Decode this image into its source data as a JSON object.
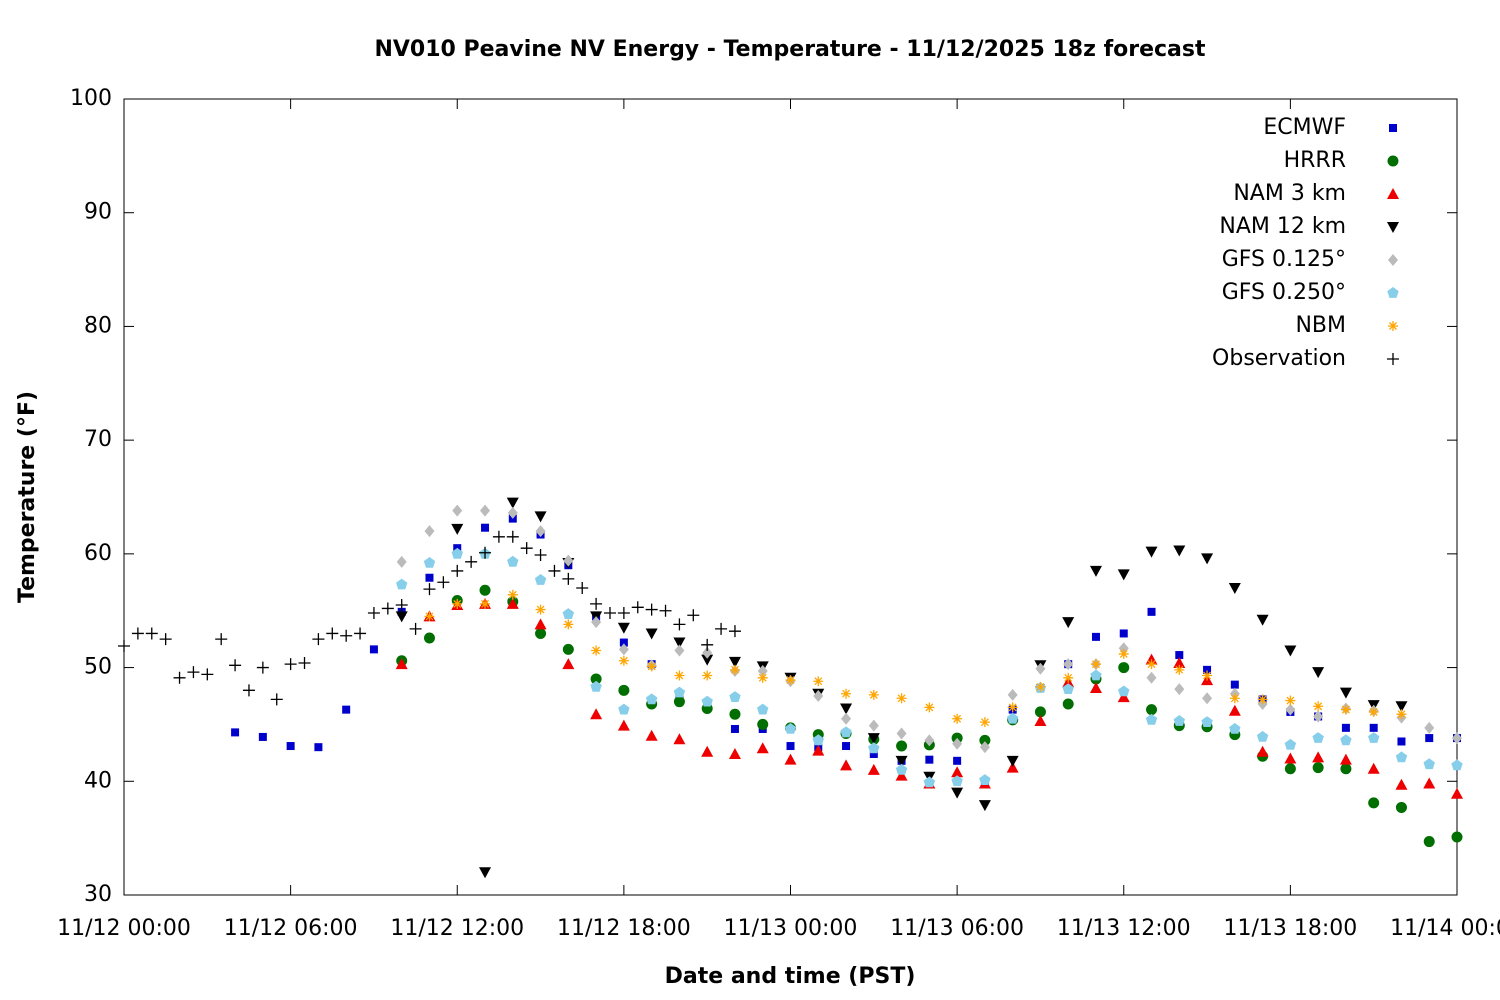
{
  "chart_data": {
    "type": "scatter",
    "title": "NV010 Peavine NV Energy - Temperature - 11/12/2025 18z forecast",
    "x_label": "Date and time (PST)",
    "y_label": "Temperature (°F)",
    "xlim": [
      "11/12 00:00",
      "11/14 00:00"
    ],
    "xticks": [
      "11/12 00:00",
      "11/12 06:00",
      "11/12 12:00",
      "11/12 18:00",
      "11/13 00:00",
      "11/13 06:00",
      "11/13 12:00",
      "11/13 18:00",
      "11/14 00:00"
    ],
    "ylim": [
      30,
      100
    ],
    "yticks": [
      30,
      40,
      50,
      60,
      70,
      80,
      90,
      100
    ],
    "grid": false,
    "legend": "top-right",
    "x": [
      "11/12 04:00",
      "11/12 05:00",
      "11/12 06:00",
      "11/12 07:00",
      "11/12 08:00",
      "11/12 09:00",
      "11/12 10:00",
      "11/12 11:00",
      "11/12 12:00",
      "11/12 13:00",
      "11/12 14:00",
      "11/12 15:00",
      "11/12 16:00",
      "11/12 17:00",
      "11/12 18:00",
      "11/12 19:00",
      "11/12 20:00",
      "11/12 21:00",
      "11/12 22:00",
      "11/12 23:00",
      "11/13 00:00",
      "11/13 01:00",
      "11/13 02:00",
      "11/13 03:00",
      "11/13 04:00",
      "11/13 05:00",
      "11/13 06:00",
      "11/13 07:00",
      "11/13 08:00",
      "11/13 09:00",
      "11/13 10:00",
      "11/13 11:00",
      "11/13 12:00",
      "11/13 13:00",
      "11/13 14:00",
      "11/13 15:00",
      "11/13 16:00",
      "11/13 17:00",
      "11/13 18:00",
      "11/13 19:00",
      "11/13 20:00",
      "11/13 21:00",
      "11/13 22:00",
      "11/13 23:00",
      "11/14 00:00"
    ],
    "series": [
      {
        "name": "ECMWF",
        "color": "#0000cc",
        "marker": "square",
        "values": [
          44.3,
          43.9,
          43.1,
          43.0,
          46.3,
          51.6,
          54.9,
          57.9,
          60.5,
          62.3,
          63.1,
          61.7,
          59.0,
          54.5,
          52.2,
          50.3,
          47.5,
          46.5,
          44.6,
          44.6,
          43.1,
          43.0,
          43.1,
          42.4,
          41.8,
          41.9,
          41.8,
          40.0,
          46.3,
          48.2,
          50.3,
          52.7,
          53.0,
          54.9,
          51.1,
          49.8,
          48.5,
          47.2,
          46.1,
          45.7,
          44.7,
          44.7,
          43.5,
          43.8,
          43.8
        ]
      },
      {
        "name": "HRRR",
        "color": "#006e00",
        "marker": "circle",
        "values": [
          null,
          null,
          null,
          null,
          null,
          null,
          50.6,
          52.6,
          55.9,
          56.8,
          55.8,
          53.0,
          51.6,
          49.0,
          48.0,
          46.8,
          47.0,
          46.4,
          45.9,
          45.0,
          44.7,
          44.1,
          44.2,
          43.7,
          43.1,
          43.2,
          43.8,
          43.6,
          45.4,
          46.1,
          46.8,
          49.0,
          50.0,
          46.3,
          44.9,
          44.8,
          44.1,
          42.2,
          41.1,
          41.2,
          41.1,
          38.1,
          37.7,
          34.7,
          35.1
        ]
      },
      {
        "name": "NAM 3 km",
        "color": "#ee0000",
        "marker": "triangle",
        "values": [
          null,
          null,
          null,
          null,
          null,
          null,
          50.3,
          54.5,
          55.5,
          55.6,
          55.6,
          53.8,
          50.3,
          45.9,
          44.9,
          44.0,
          43.7,
          42.6,
          42.4,
          42.9,
          41.9,
          42.7,
          41.4,
          41.0,
          40.5,
          39.8,
          40.8,
          39.8,
          41.2,
          45.3,
          48.7,
          48.2,
          47.4,
          50.7,
          50.4,
          48.9,
          46.2,
          42.6,
          42.0,
          42.1,
          41.9,
          41.1,
          39.7,
          39.8,
          38.9
        ]
      },
      {
        "name": "NAM 12 km",
        "color": "#000000",
        "marker": "triangle-down",
        "values": [
          null,
          null,
          null,
          null,
          null,
          null,
          54.5,
          null,
          62.2,
          32.0,
          64.5,
          63.3,
          59.2,
          54.5,
          53.5,
          53.0,
          52.2,
          50.7,
          50.5,
          50.1,
          49.1,
          47.7,
          46.4,
          43.8,
          41.8,
          40.4,
          39.0,
          37.9,
          41.8,
          50.2,
          54.0,
          58.5,
          58.2,
          60.2,
          60.3,
          59.6,
          57.0,
          54.2,
          51.5,
          49.6,
          47.8,
          46.7,
          46.6,
          null,
          null
        ]
      },
      {
        "name": "GFS 0.125°",
        "color": "#bbbbbb",
        "marker": "diamond",
        "values": [
          null,
          null,
          null,
          null,
          null,
          null,
          59.3,
          62.0,
          63.8,
          63.8,
          63.6,
          62.0,
          59.4,
          54.0,
          51.6,
          50.2,
          51.5,
          51.3,
          49.7,
          49.7,
          48.8,
          47.5,
          45.5,
          44.9,
          44.2,
          43.6,
          43.3,
          43.0,
          47.6,
          49.9,
          50.3,
          50.3,
          51.7,
          49.1,
          48.1,
          47.3,
          47.7,
          46.8,
          46.3,
          45.7,
          46.4,
          46.2,
          45.6,
          44.7,
          43.8
        ]
      },
      {
        "name": "GFS 0.250°",
        "color": "#87ceeb",
        "marker": "pentagon",
        "values": [
          null,
          null,
          null,
          null,
          null,
          null,
          57.3,
          59.2,
          60.0,
          60.0,
          59.3,
          57.7,
          54.7,
          48.3,
          46.3,
          47.2,
          47.8,
          47.0,
          47.4,
          46.3,
          44.6,
          43.6,
          44.3,
          42.9,
          41.0,
          39.9,
          40.0,
          40.1,
          45.5,
          48.2,
          48.1,
          49.3,
          47.9,
          45.4,
          45.3,
          45.2,
          44.6,
          43.9,
          43.2,
          43.8,
          43.6,
          43.8,
          42.1,
          41.5,
          41.4
        ]
      },
      {
        "name": "NBM",
        "color": "#ffa500",
        "marker": "star",
        "values": [
          null,
          null,
          null,
          null,
          null,
          null,
          null,
          54.5,
          55.6,
          55.6,
          56.4,
          55.1,
          53.8,
          51.5,
          50.6,
          50.1,
          49.3,
          49.3,
          49.8,
          49.1,
          48.9,
          48.8,
          47.7,
          47.6,
          47.3,
          46.5,
          45.5,
          45.2,
          46.5,
          48.3,
          49.1,
          50.3,
          51.2,
          50.3,
          49.8,
          49.3,
          47.3,
          47.2,
          47.1,
          46.6,
          46.3,
          46.1,
          45.9,
          null,
          null
        ]
      },
      {
        "name": "Observation",
        "color": "#000000",
        "marker": "plus",
        "x": [
          "11/12 00:00",
          "11/12 00:30",
          "11/12 01:00",
          "11/12 01:30",
          "11/12 02:00",
          "11/12 02:30",
          "11/12 03:00",
          "11/12 03:30",
          "11/12 04:00",
          "11/12 04:30",
          "11/12 05:00",
          "11/12 05:30",
          "11/12 06:00",
          "11/12 06:30",
          "11/12 07:00",
          "11/12 07:30",
          "11/12 08:00",
          "11/12 08:30",
          "11/12 09:00",
          "11/12 09:30",
          "11/12 10:00",
          "11/12 10:30",
          "11/12 11:00",
          "11/12 11:30",
          "11/12 12:00",
          "11/12 12:30",
          "11/12 13:00",
          "11/12 13:30",
          "11/12 14:00",
          "11/12 14:30",
          "11/12 15:00",
          "11/12 15:30",
          "11/12 16:00",
          "11/12 16:30",
          "11/12 17:00",
          "11/12 17:30",
          "11/12 18:00",
          "11/12 18:30",
          "11/12 19:00",
          "11/12 19:30",
          "11/12 20:00",
          "11/12 20:30",
          "11/12 21:00",
          "11/12 21:30",
          "11/12 22:00"
        ],
        "values": [
          51.9,
          53.0,
          53.0,
          52.5,
          49.1,
          49.6,
          49.4,
          52.5,
          50.2,
          48.0,
          50.0,
          47.2,
          50.3,
          50.4,
          52.5,
          53.0,
          52.8,
          53.0,
          54.8,
          55.2,
          55.5,
          53.4,
          56.9,
          57.5,
          58.5,
          59.3,
          60.1,
          61.5,
          61.5,
          60.5,
          59.9,
          58.5,
          57.8,
          57.0,
          55.6,
          54.8,
          54.8,
          55.3,
          55.1,
          55.0,
          53.8,
          54.6,
          52.0,
          53.4,
          53.2
        ]
      }
    ]
  }
}
